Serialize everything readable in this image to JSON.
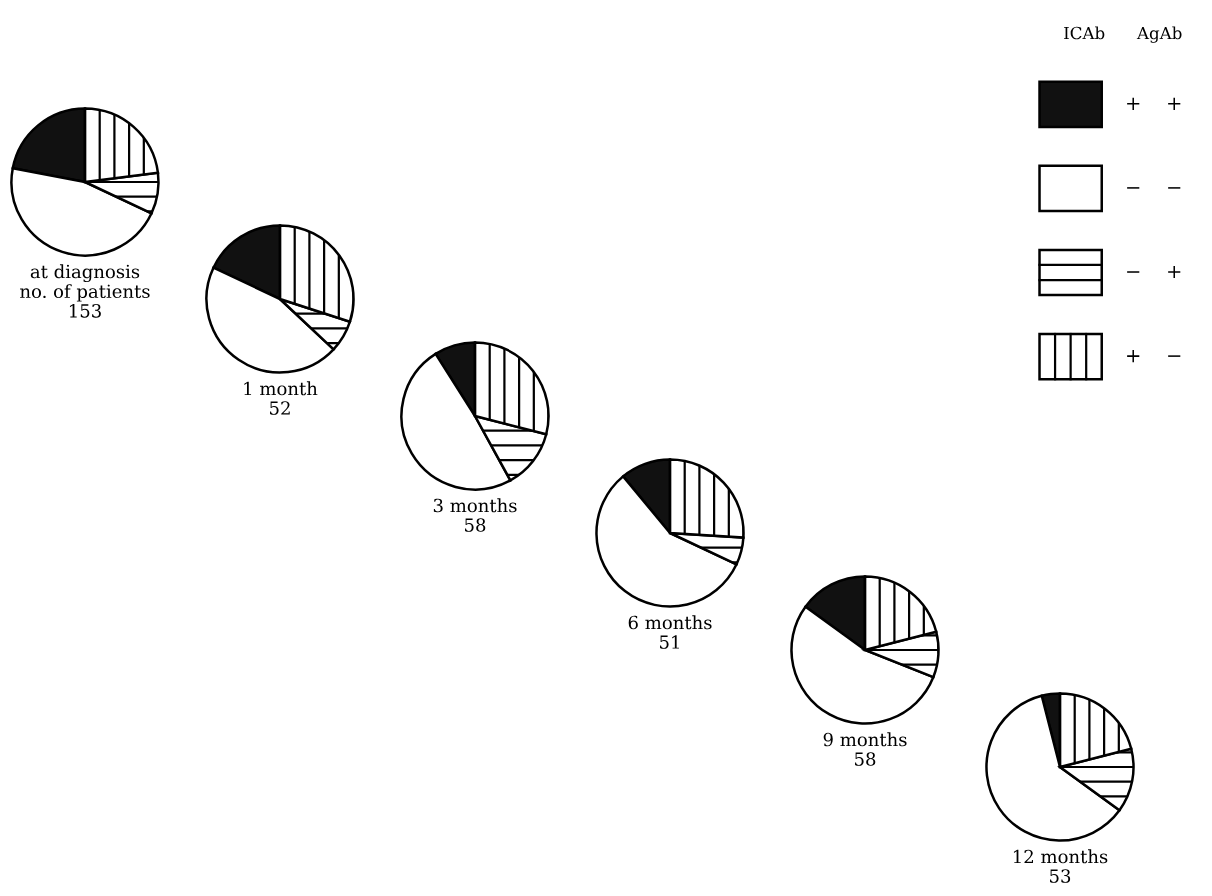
{
  "chart_data": [
    {
      "type": "pie",
      "title": "at diagnosis\nno. of patients\n153",
      "categories": [
        "+ +",
        "− −",
        "− +",
        "+ −"
      ],
      "values": [
        22,
        46,
        9,
        23
      ],
      "colors": [
        "#111111",
        "#ffffff",
        "#ffffff",
        "#ffffff"
      ],
      "legend": "right",
      "legend_title": "ICAb AgAb"
    },
    {
      "type": "pie",
      "title": "1 month\n52",
      "values": [
        18,
        45,
        7,
        30
      ],
      "colors": [
        "#111111",
        "#ffffff",
        "#ffffff",
        "#ffffff"
      ]
    },
    {
      "type": "pie",
      "title": "3 months\n58",
      "values": [
        9,
        49,
        13,
        29
      ],
      "colors": [
        "#111111",
        "#ffffff",
        "#ffffff",
        "#ffffff"
      ]
    },
    {
      "type": "pie",
      "title": "6 months\n51",
      "values": [
        11,
        57,
        6,
        26
      ],
      "colors": [
        "#111111",
        "#ffffff",
        "#ffffff",
        "#ffffff"
      ]
    },
    {
      "type": "pie",
      "title": "9 months\n58",
      "values": [
        15,
        54,
        10,
        21
      ],
      "colors": [
        "#111111",
        "#ffffff",
        "#ffffff",
        "#ffffff"
      ]
    },
    {
      "type": "pie",
      "title": "12 months\n53",
      "values": [
        4,
        61,
        14,
        21
      ],
      "colors": [
        "#111111",
        "#ffffff",
        "#ffffff",
        "#ffffff"
      ]
    }
  ]
}
